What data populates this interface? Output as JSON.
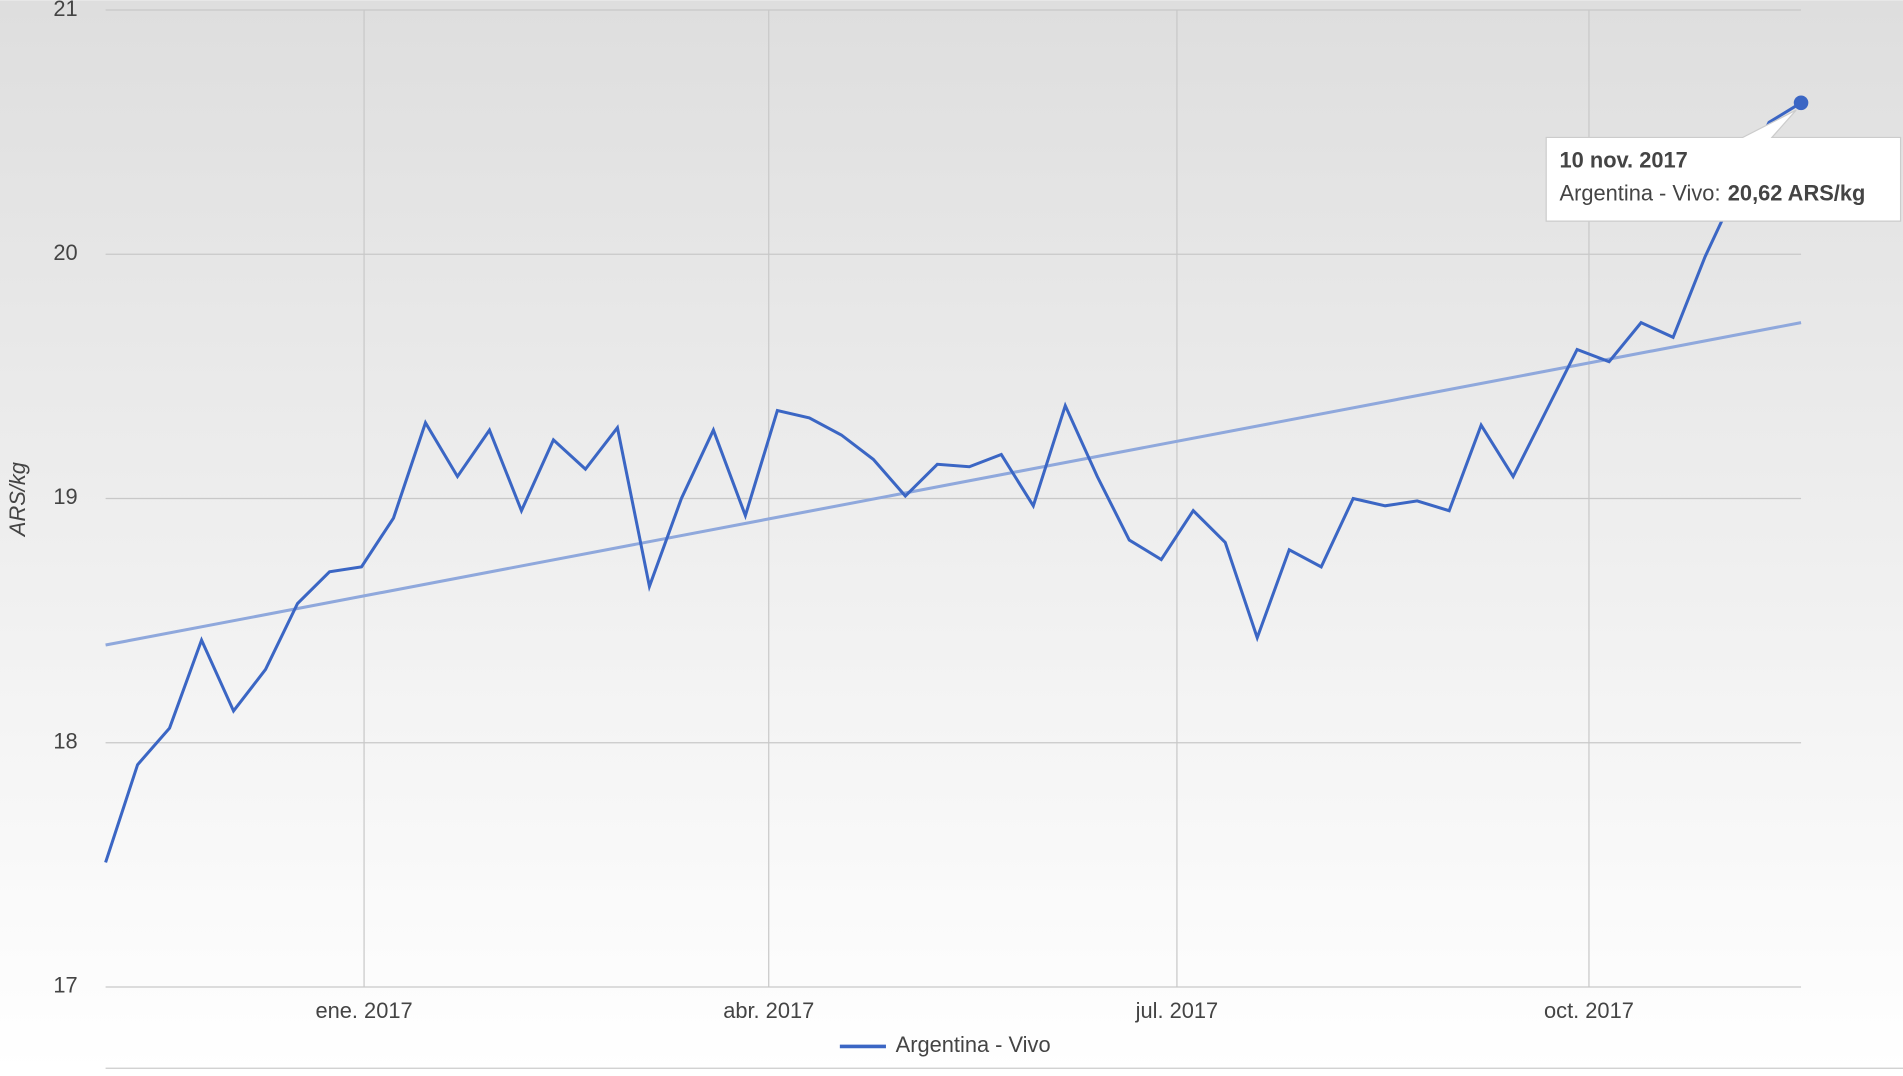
{
  "chart_data": {
    "type": "line",
    "y_label": "ARS/kg",
    "series": [
      {
        "name": "Argentina - Vivo",
        "color": "#3b66c4",
        "values": [
          17.51,
          17.91,
          18.06,
          18.42,
          18.13,
          18.3,
          18.57,
          18.7,
          18.72,
          18.92,
          19.31,
          19.09,
          19.28,
          18.95,
          19.24,
          19.12,
          19.29,
          18.64,
          19.0,
          19.28,
          18.93,
          19.36,
          19.33,
          19.26,
          19.16,
          19.01,
          19.14,
          19.13,
          19.18,
          18.97,
          19.38,
          19.09,
          18.83,
          18.75,
          18.95,
          18.82,
          18.43,
          18.79,
          18.72,
          19.0,
          18.97,
          18.99,
          18.95,
          19.3,
          19.09,
          19.35,
          19.61,
          19.56,
          19.72,
          19.66,
          19.99,
          20.27,
          20.54,
          20.62
        ]
      }
    ],
    "trendline": {
      "color": "#8fa8dc",
      "values": [
        18.4,
        19.72
      ]
    },
    "xticks": [
      {
        "value": 8.08,
        "label": "ene. 2017"
      },
      {
        "value": 20.73,
        "label": "abr. 2017"
      },
      {
        "value": 33.49,
        "label": "jul. 2017"
      },
      {
        "value": 46.37,
        "label": "oct. 2017"
      }
    ],
    "ylim": [
      17,
      21
    ],
    "yticks": [
      17,
      18,
      19,
      20,
      21
    ],
    "grid": true,
    "tooltip": {
      "title": "10 nov. 2017",
      "label": "Argentina - Vivo:",
      "value": "20,62 ARS/kg"
    }
  }
}
